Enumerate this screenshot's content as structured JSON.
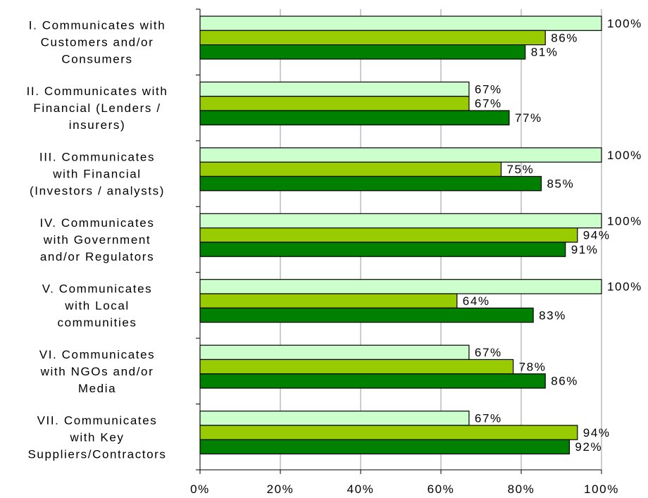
{
  "chart_data": {
    "type": "bar",
    "orientation": "horizontal",
    "categories": [
      [
        "I. Communicates with",
        "Customers and/or",
        "Consumers"
      ],
      [
        "II. Communicates with",
        "Financial (Lenders /",
        "insurers)"
      ],
      [
        "III. Communicates",
        "with Financial",
        "(Investors / analysts)"
      ],
      [
        "IV. Communicates",
        "with Government",
        "and/or Regulators"
      ],
      [
        "V. Communicates",
        "with  Local",
        "communities"
      ],
      [
        "VI. Communicates",
        "with NGOs and/or",
        "Media"
      ],
      [
        "VII. Communicates",
        "with Key",
        "Suppliers/Contractors"
      ]
    ],
    "series": [
      {
        "color": "#ccffcc",
        "values": [
          100,
          67,
          100,
          100,
          100,
          67,
          67
        ]
      },
      {
        "color": "#99cc00",
        "values": [
          86,
          67,
          75,
          94,
          64,
          78,
          94
        ]
      },
      {
        "color": "#008000",
        "values": [
          81,
          77,
          85,
          91,
          83,
          86,
          92
        ]
      }
    ],
    "value_suffix": "%",
    "xlim": [
      0,
      100
    ],
    "xticks": [
      "0%",
      "20%",
      "40%",
      "60%",
      "80%",
      "100%"
    ],
    "grid": true,
    "legend": "none",
    "title": "",
    "xlabel": "",
    "ylabel": ""
  }
}
